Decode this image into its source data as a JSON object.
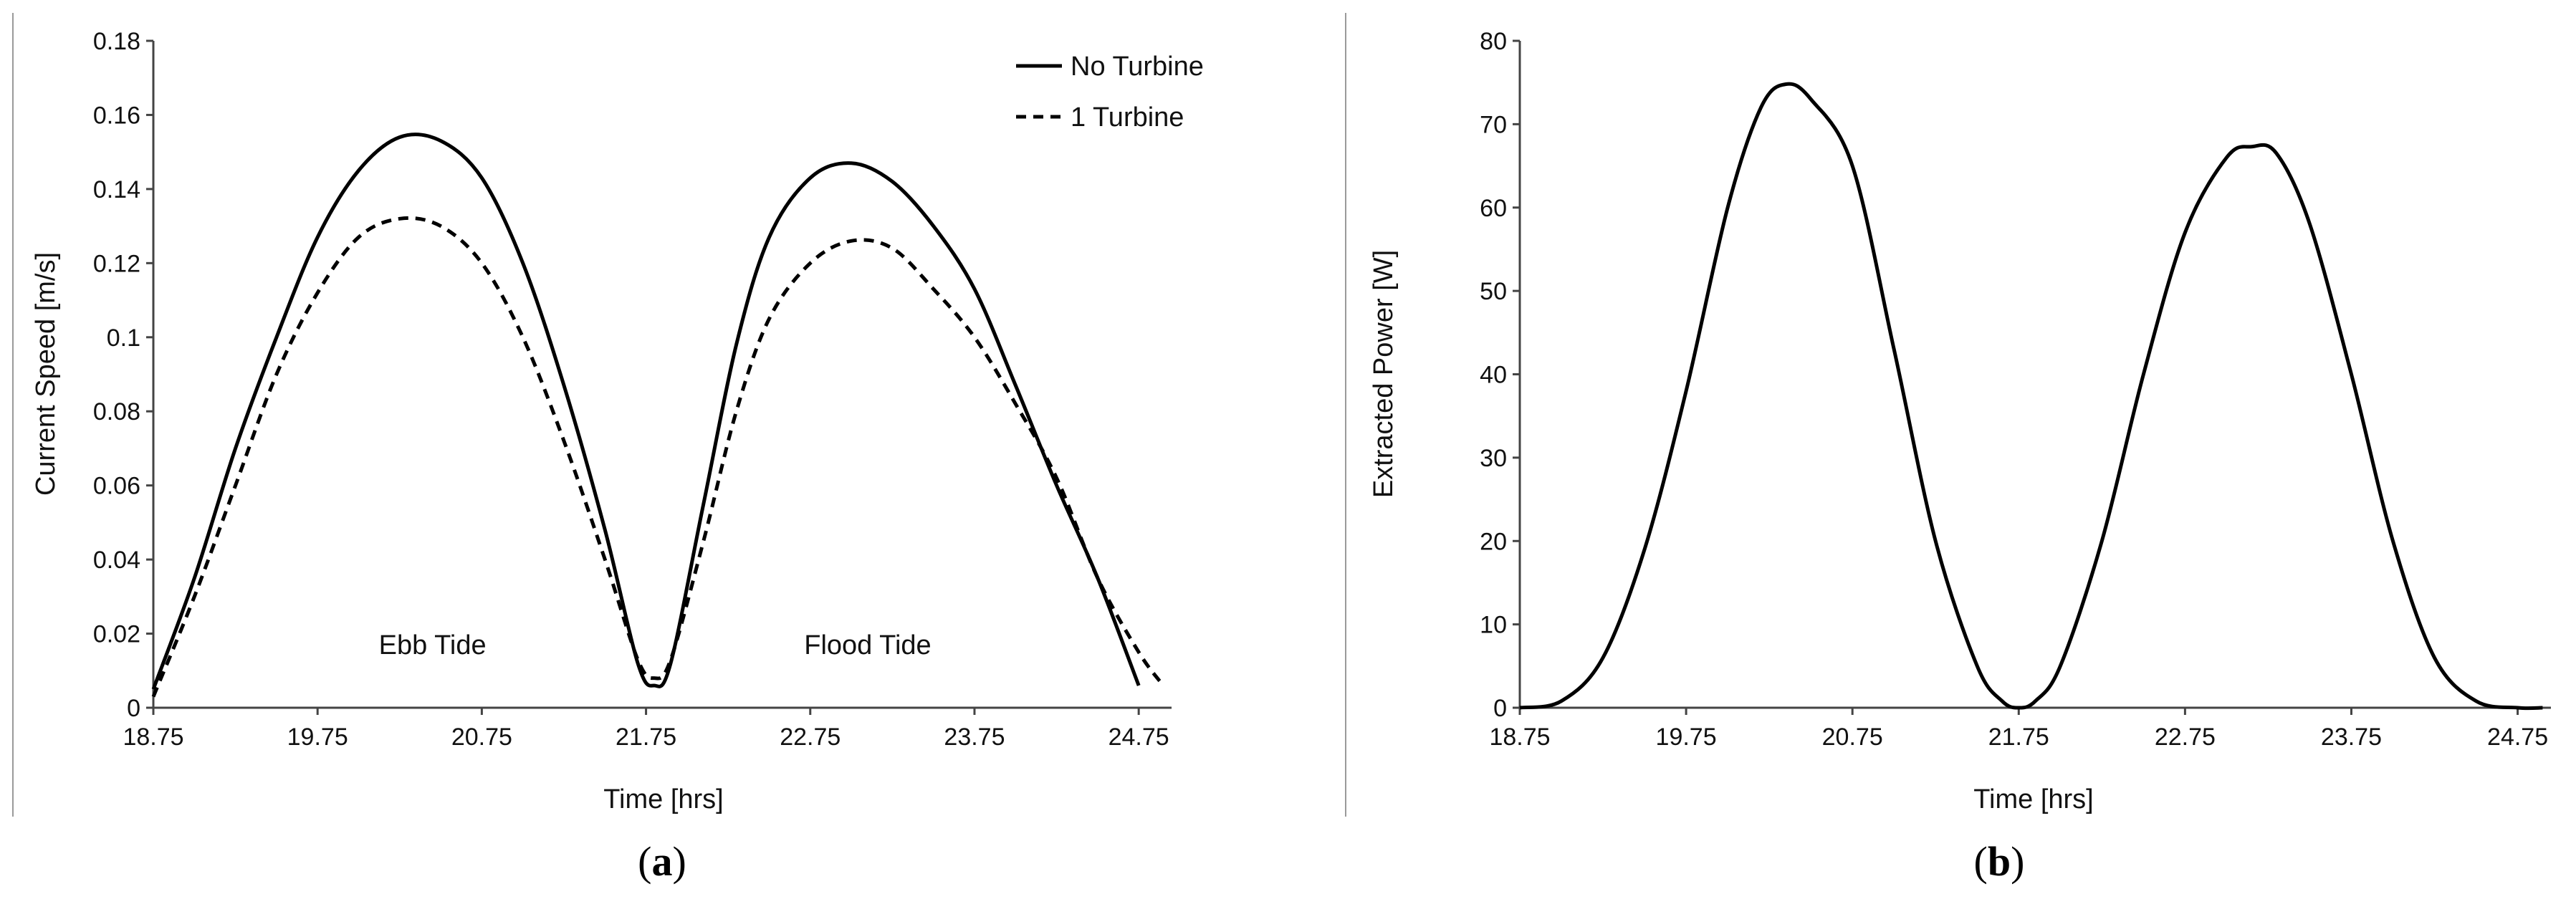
{
  "chart_data": [
    {
      "panel": "a",
      "panel_label": {
        "open": "(",
        "letter": "a",
        "close": ")"
      },
      "type": "line",
      "title": "",
      "xlabel": "Time [hrs]",
      "ylabel": "Current Speed [m/s]",
      "xlim": [
        18.75,
        24.95
      ],
      "ylim": [
        0,
        0.18
      ],
      "xticks": [
        18.75,
        19.75,
        20.75,
        21.75,
        22.75,
        23.75,
        24.75
      ],
      "xtick_labels": [
        "18.75",
        "19.75",
        "20.75",
        "21.75",
        "22.75",
        "23.75",
        "24.75"
      ],
      "yticks": [
        0,
        0.02,
        0.04,
        0.06,
        0.08,
        0.1,
        0.12,
        0.14,
        0.16,
        0.18
      ],
      "ytick_labels": [
        "0",
        "0.02",
        "0.04",
        "0.06",
        "0.08",
        "0.1",
        "0.12",
        "0.14",
        "0.16",
        "0.18"
      ],
      "grid": false,
      "legend": "top-right",
      "annotations": [
        {
          "text": "Ebb Tide",
          "x": 20.45,
          "y": 0.017
        },
        {
          "text": "Flood Tide",
          "x": 23.1,
          "y": 0.017
        }
      ],
      "series": [
        {
          "name": "No Turbine",
          "style": "solid",
          "x": [
            18.75,
            19.0,
            19.25,
            19.5,
            19.75,
            20.0,
            20.25,
            20.5,
            20.75,
            21.0,
            21.25,
            21.5,
            21.7,
            21.8,
            21.9,
            22.1,
            22.3,
            22.5,
            22.75,
            23.0,
            23.25,
            23.5,
            23.75,
            24.0,
            24.25,
            24.5,
            24.75
          ],
          "y": [
            0.005,
            0.035,
            0.07,
            0.1,
            0.127,
            0.145,
            0.154,
            0.153,
            0.143,
            0.12,
            0.087,
            0.048,
            0.012,
            0.006,
            0.012,
            0.055,
            0.098,
            0.127,
            0.143,
            0.147,
            0.142,
            0.13,
            0.113,
            0.087,
            0.06,
            0.035,
            0.006
          ]
        },
        {
          "name": "1 Turbine",
          "style": "dashed",
          "x": [
            18.75,
            19.0,
            19.25,
            19.5,
            19.75,
            20.0,
            20.25,
            20.5,
            20.75,
            21.0,
            21.25,
            21.5,
            21.7,
            21.8,
            21.9,
            22.1,
            22.3,
            22.5,
            22.75,
            23.0,
            23.25,
            23.5,
            23.75,
            24.0,
            24.25,
            24.5,
            24.75,
            24.9
          ],
          "y": [
            0.003,
            0.03,
            0.06,
            0.09,
            0.112,
            0.127,
            0.132,
            0.13,
            0.12,
            0.1,
            0.072,
            0.04,
            0.013,
            0.008,
            0.013,
            0.045,
            0.08,
            0.105,
            0.12,
            0.126,
            0.124,
            0.113,
            0.1,
            0.082,
            0.062,
            0.035,
            0.015,
            0.006
          ]
        }
      ]
    },
    {
      "panel": "b",
      "panel_label": {
        "open": "(",
        "letter": "b",
        "close": ")"
      },
      "type": "line",
      "title": "",
      "xlabel": "Time [hrs]",
      "ylabel": "Extracted Power [W]",
      "xlim": [
        18.75,
        24.95
      ],
      "ylim": [
        0,
        80
      ],
      "xticks": [
        18.75,
        19.75,
        20.75,
        21.75,
        22.75,
        23.75,
        24.75
      ],
      "xtick_labels": [
        "18.75",
        "19.75",
        "20.75",
        "21.75",
        "22.75",
        "23.75",
        "24.75"
      ],
      "yticks": [
        0,
        10,
        20,
        30,
        40,
        50,
        60,
        70,
        80
      ],
      "ytick_labels": [
        "0",
        "10",
        "20",
        "30",
        "40",
        "50",
        "60",
        "70",
        "80"
      ],
      "grid": false,
      "legend": "none",
      "series": [
        {
          "name": "Extracted Power",
          "style": "solid",
          "x": [
            18.75,
            19.0,
            19.25,
            19.5,
            19.75,
            20.0,
            20.2,
            20.35,
            20.5,
            20.75,
            21.0,
            21.25,
            21.5,
            21.65,
            21.75,
            21.85,
            22.0,
            22.25,
            22.5,
            22.75,
            23.0,
            23.15,
            23.3,
            23.5,
            23.75,
            24.0,
            24.25,
            24.5,
            24.75,
            24.9
          ],
          "y": [
            0,
            0.8,
            6,
            19,
            38,
            60,
            72,
            74.8,
            73,
            65,
            43,
            20,
            5,
            0.8,
            0,
            0.8,
            5,
            20,
            40,
            57,
            66,
            67.3,
            66.5,
            58,
            40,
            20,
            6,
            0.8,
            0,
            0
          ]
        }
      ]
    }
  ]
}
